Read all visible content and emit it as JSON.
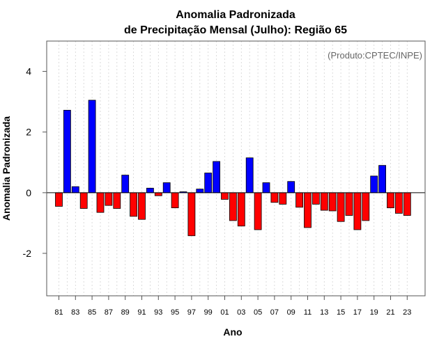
{
  "chart_data": {
    "type": "bar",
    "title_line1": "Anomalia Padronizada",
    "title_line2": "de Precipitação Mensal (Julho): Região 65",
    "xlabel": "Ano",
    "ylabel": "Anomalia Padronizada",
    "annotation": "(Produto:CPTEC/INPE)",
    "ylim": [
      -3.4,
      5.0
    ],
    "yticks": [
      -2,
      0,
      2,
      4
    ],
    "ytick_labels": [
      "-2",
      "0",
      "2",
      "4"
    ],
    "positive_color": "#0000ff",
    "negative_color": "#ff0000",
    "categories": [
      "81",
      "82",
      "83",
      "84",
      "85",
      "86",
      "87",
      "88",
      "89",
      "90",
      "91",
      "92",
      "93",
      "94",
      "95",
      "96",
      "97",
      "98",
      "99",
      "00",
      "01",
      "02",
      "03",
      "04",
      "05",
      "06",
      "07",
      "08",
      "09",
      "10",
      "11",
      "12",
      "13",
      "14",
      "15",
      "16",
      "17",
      "18",
      "19",
      "20",
      "21",
      "22",
      "23"
    ],
    "xtick_labels": [
      "81",
      "83",
      "85",
      "87",
      "89",
      "91",
      "93",
      "95",
      "97",
      "99",
      "01",
      "03",
      "05",
      "07",
      "09",
      "11",
      "13",
      "15",
      "17",
      "19",
      "21",
      "23"
    ],
    "values": [
      -0.45,
      2.72,
      0.2,
      -0.52,
      3.05,
      -0.65,
      -0.42,
      -0.52,
      0.58,
      -0.78,
      -0.88,
      0.15,
      -0.1,
      0.33,
      -0.5,
      0.03,
      -1.42,
      0.12,
      0.65,
      1.03,
      -0.22,
      -0.92,
      -1.1,
      1.15,
      -1.22,
      0.33,
      -0.32,
      -0.38,
      0.37,
      -0.48,
      -1.15,
      -0.38,
      -0.58,
      -0.6,
      -0.95,
      -0.75,
      -1.22,
      -0.92,
      0.55,
      0.9,
      -0.5,
      -0.68,
      -0.75
    ]
  }
}
